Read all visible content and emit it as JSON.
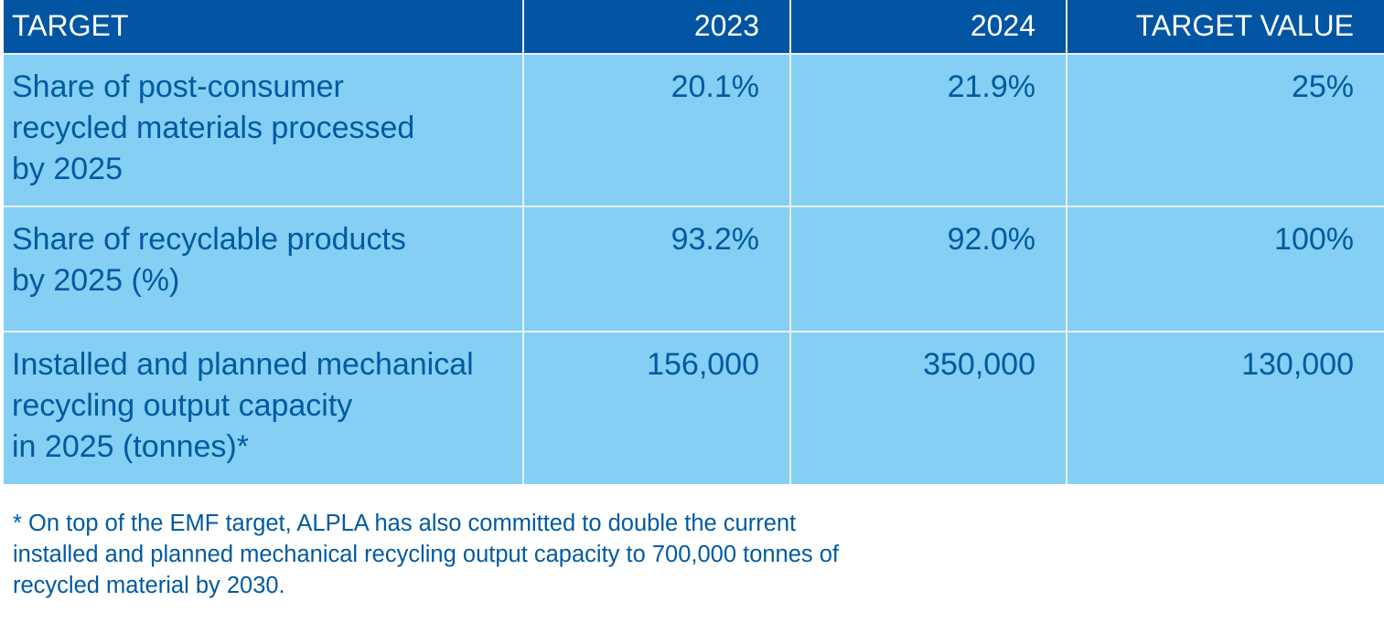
{
  "table": {
    "headers": [
      "TARGET",
      "2023",
      "2024",
      "TARGET VALUE"
    ],
    "rows": [
      {
        "target_lines": [
          "Share of post-consumer",
          "recycled materials processed",
          "by 2025"
        ],
        "y2023": "20.1%",
        "y2024": "21.9%",
        "target_value": "25%"
      },
      {
        "target_lines": [
          "Share of recyclable products",
          "by 2025 (%)"
        ],
        "y2023": "93.2%",
        "y2024": "92.0%",
        "target_value": "100%"
      },
      {
        "target_lines": [
          "Installed and planned mechanical",
          "recycling output capacity",
          "in 2025 (tonnes)*"
        ],
        "y2023": "156,000",
        "y2024": "350,000",
        "target_value": "130,000"
      }
    ]
  },
  "footnote_lines": [
    "* On top of the EMF target, ALPLA has also committed to double the current",
    "installed and planned mechanical recycling output capacity to 700,000 tonnes of",
    "recycled material by 2030."
  ],
  "colors": {
    "header_bg": "#0255a2",
    "header_text": "#ffffff",
    "cell_bg": "#85cff4",
    "cell_text": "#005aa0",
    "divider": "#e8f1f8"
  }
}
